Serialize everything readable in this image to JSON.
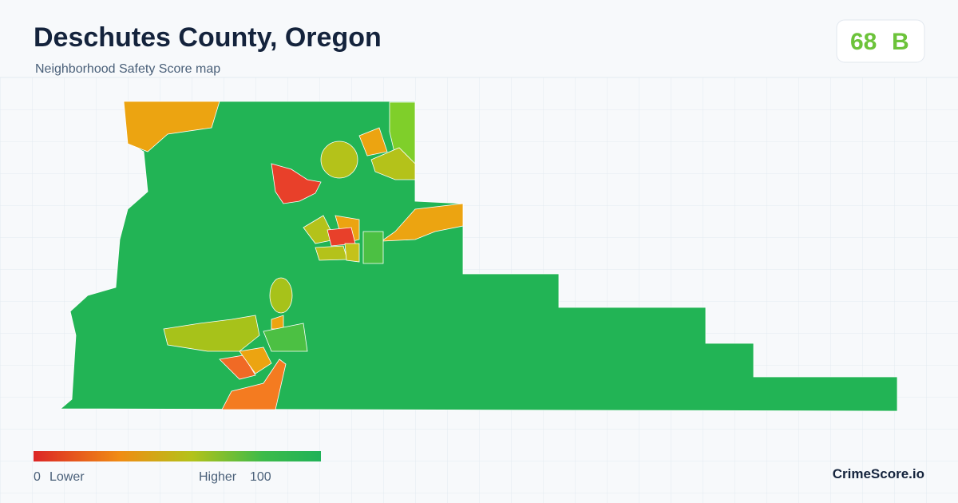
{
  "header": {
    "title": "Deschutes County, Oregon",
    "subtitle": "Neighborhood Safety Score map"
  },
  "score": {
    "value": 68,
    "grade": "B"
  },
  "legend": {
    "min": "0",
    "min_label": "Lower",
    "max_label": "Higher",
    "max": "100"
  },
  "brand": "CrimeScore.io"
}
